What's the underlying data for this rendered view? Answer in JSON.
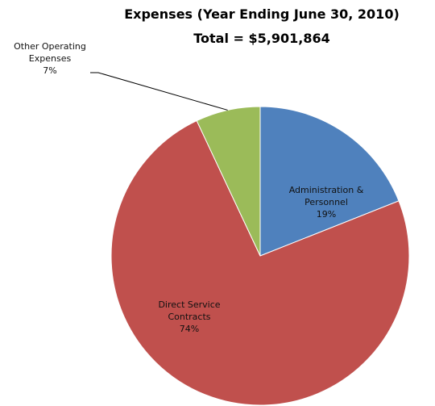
{
  "chart_data": {
    "type": "pie",
    "title": "Expenses (Year Ending June 30, 2010)",
    "subtitle": "Total = $5,901,864",
    "categories": [
      "Administration & Personnel",
      "Direct Service Contracts",
      "Other Operating Expenses"
    ],
    "values": [
      19,
      74,
      7
    ],
    "value_labels": [
      "19%",
      "74%",
      "7%"
    ],
    "colors": [
      "#4f81bd",
      "#c0504d",
      "#9bbb59"
    ]
  }
}
